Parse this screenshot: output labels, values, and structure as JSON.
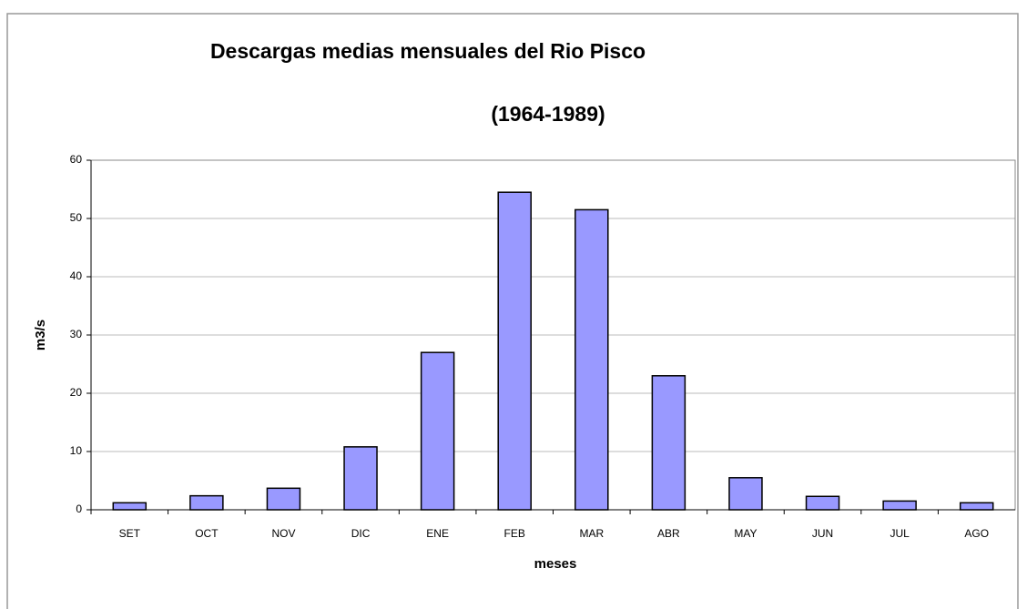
{
  "chart_data": {
    "type": "bar",
    "title": "Descargas medias mensuales del Rio Pisco",
    "subtitle": "(1964-1989)",
    "x_label": "meses",
    "y_label": "m3/s",
    "categories": [
      "SET",
      "OCT",
      "NOV",
      "DIC",
      "ENE",
      "FEB",
      "MAR",
      "ABR",
      "MAY",
      "JUN",
      "JUL",
      "AGO"
    ],
    "values": [
      1.2,
      2.4,
      3.7,
      10.8,
      27,
      54.5,
      51.5,
      23,
      5.5,
      2.3,
      1.5,
      1.2
    ],
    "color": "#9999ff",
    "ylim": [
      0,
      60
    ],
    "yticks": [
      0,
      10,
      20,
      30,
      40,
      50,
      60
    ],
    "grid": true
  }
}
